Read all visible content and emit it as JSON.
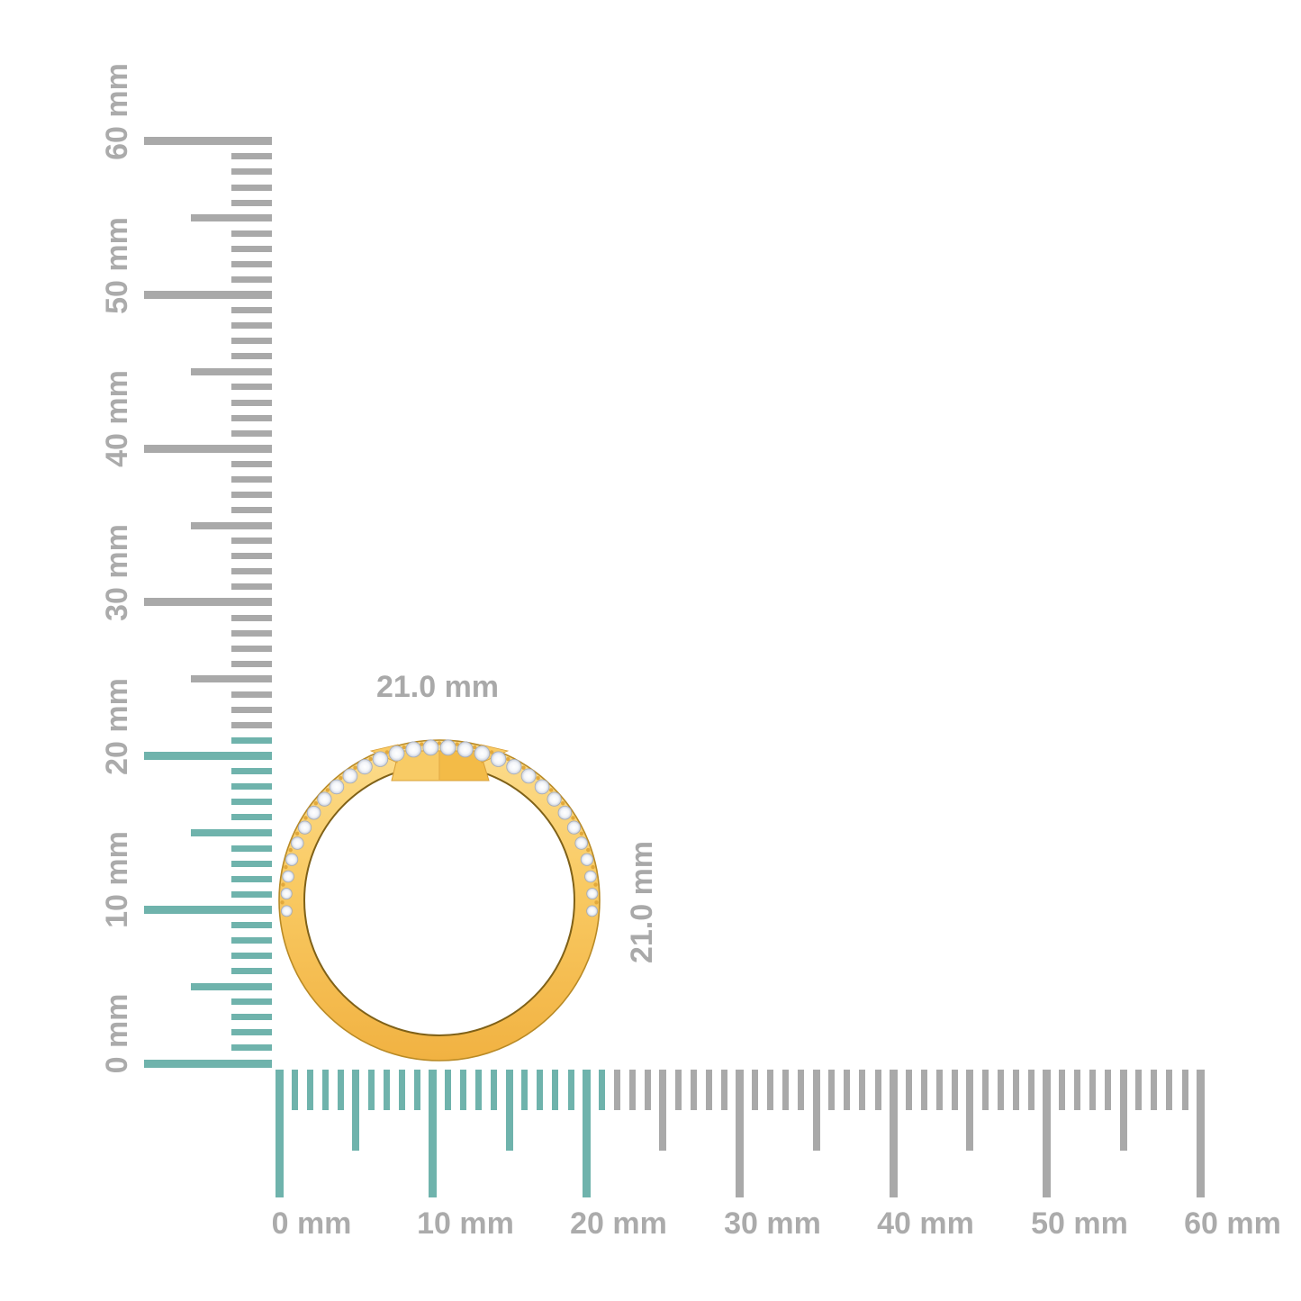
{
  "annotations": {
    "width_label": "21.0 mm",
    "height_label": "21.0 mm",
    "color": "#A9A9A9"
  },
  "rulers": {
    "unit": "mm",
    "max_mm": 60,
    "minor_step_mm": 1,
    "mid_step_mm": 5,
    "major_step_mm": 10,
    "highlighted_extent_mm": 21,
    "highlight_color": "#6FB3AC",
    "tick_color": "#A9A9A9",
    "label_color": "#ABABAB",
    "vertical_labels": [
      "0 mm",
      "10 mm",
      "20 mm",
      "30 mm",
      "40 mm",
      "50 mm",
      "60 mm"
    ],
    "horizontal_labels": [
      "0 mm",
      "10 mm",
      "20 mm",
      "30 mm",
      "40 mm",
      "50 mm",
      "60 mm"
    ]
  },
  "ring": {
    "description": "yellow-gold band profile view with pave diamonds along upper shoulders and faceted top plate",
    "diamond_count": 30,
    "colors": {
      "gold_light": "#FCDD8E",
      "gold_mid": "#F9CA63",
      "gold_deep": "#F1B242",
      "gold_edge": "#B98A25",
      "inner_edge": "#7F6118",
      "plate_left": "#F8CB65",
      "plate_right": "#F3BB47",
      "plate_edge": "#D9A038",
      "plate_seam": "#E8B24C",
      "prong": "#E2A93C",
      "diamond_center": "#FFFFFF",
      "diamond_edge_tint": "#C9CFDA",
      "diamond_outline": "#A3AAB8"
    }
  }
}
